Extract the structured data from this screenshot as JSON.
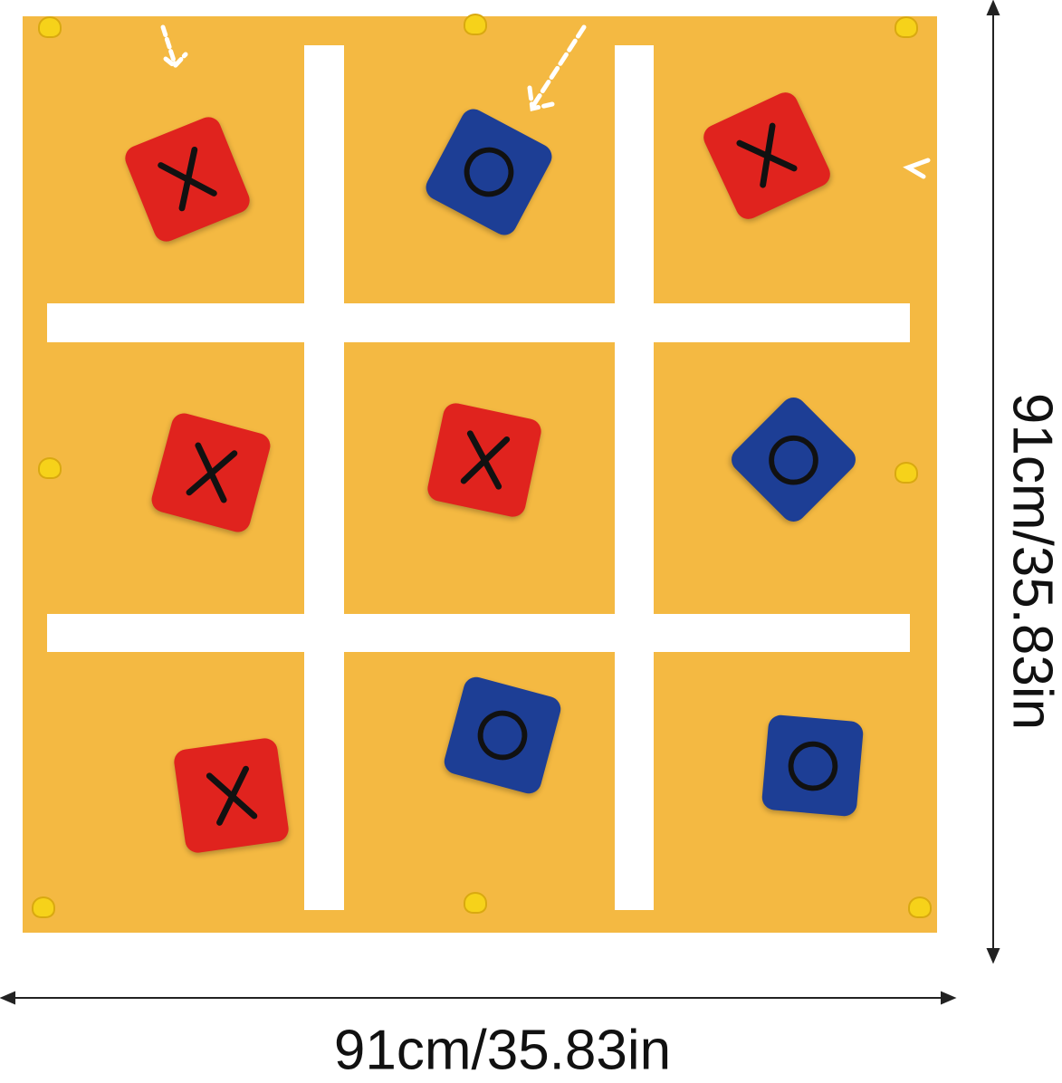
{
  "board": {
    "mat_color": "#f4b942",
    "x_color": "#e0231e",
    "o_color": "#1d3e95",
    "cells": [
      {
        "row": 1,
        "col": 1,
        "mark": "X"
      },
      {
        "row": 1,
        "col": 2,
        "mark": "O"
      },
      {
        "row": 1,
        "col": 3,
        "mark": "X"
      },
      {
        "row": 2,
        "col": 1,
        "mark": "X"
      },
      {
        "row": 2,
        "col": 2,
        "mark": "X"
      },
      {
        "row": 2,
        "col": 3,
        "mark": "O"
      },
      {
        "row": 3,
        "col": 1,
        "mark": "X"
      },
      {
        "row": 3,
        "col": 2,
        "mark": "O"
      },
      {
        "row": 3,
        "col": 3,
        "mark": "O"
      }
    ]
  },
  "dimensions": {
    "height_label": "91cm/35.83in",
    "width_label": "91cm/35.83in"
  }
}
